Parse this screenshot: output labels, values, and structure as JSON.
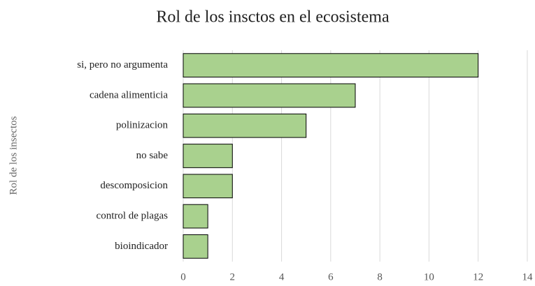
{
  "chart_data": {
    "type": "barh",
    "title": "Rol de los insctos en el ecosistema",
    "y_label": "Rol de los insectos",
    "categories": [
      "si, pero no argumenta",
      "cadena alimenticia",
      "polinizacion",
      "no sabe",
      "descomposicion",
      "control de plagas",
      "bioindicador"
    ],
    "values": [
      12,
      7,
      5,
      2,
      2,
      1,
      1
    ],
    "color": "#a9d18e",
    "xlim": [
      0,
      14
    ],
    "xticks": [
      0,
      2,
      4,
      6,
      8,
      10,
      12,
      14
    ],
    "grid": true
  }
}
